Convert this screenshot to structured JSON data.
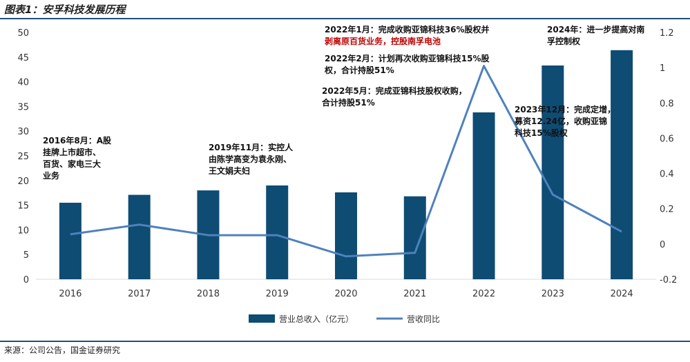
{
  "header": {
    "title": "图表1：安孚科技发展历程"
  },
  "footer": {
    "source": "来源：公司公告，国金证券研究"
  },
  "chart_data": {
    "type": "bar",
    "categories": [
      "2016",
      "2017",
      "2018",
      "2019",
      "2020",
      "2021",
      "2022",
      "2023",
      "2024"
    ],
    "series": [
      {
        "name": "营业总收入（亿元）",
        "type": "bar",
        "axis": "left",
        "color": "#0e4c73",
        "values": [
          15.5,
          17.1,
          18.0,
          19.0,
          17.6,
          16.8,
          33.8,
          43.3,
          46.4
        ]
      },
      {
        "name": "营收同比",
        "type": "line",
        "axis": "right",
        "color": "#4f81bd",
        "values": [
          0.055,
          0.11,
          0.05,
          0.05,
          -0.07,
          -0.05,
          1.01,
          0.28,
          0.07
        ]
      }
    ],
    "y_left": {
      "min": 0,
      "max": 50,
      "ticks": [
        "0",
        "5",
        "10",
        "15",
        "20",
        "25",
        "30",
        "35",
        "40",
        "45",
        "50"
      ]
    },
    "y_right": {
      "min": -0.2,
      "max": 1.2,
      "ticks": [
        "-0.2",
        "0",
        "0.2",
        "0.4",
        "0.6",
        "0.8",
        "1",
        "1.2"
      ]
    },
    "legend": {
      "position": "bottom"
    },
    "annotations": [
      {
        "lines": [
          "2016年8月：A股",
          "挂牌上市超市、",
          "百货、家电三大",
          "业务"
        ],
        "color": "#111111"
      },
      {
        "lines": [
          "2019年11月：实控人",
          "由陈学高变为袁永刚、",
          "王文娟夫妇"
        ],
        "color": "#111111"
      },
      {
        "lines": [
          "2022年1月：完成收购亚锦科技36%股权并"
        ],
        "color": "#111111"
      },
      {
        "lines": [
          "剥离原百货业务，控股南孚电池"
        ],
        "color": "#c00000"
      },
      {
        "lines": [
          "2022年2月：计划再次收购亚锦科技15%股",
          "权，合计持股51%"
        ],
        "color": "#111111"
      },
      {
        "lines": [
          "2022年5月：完成亚锦科技股权收购，",
          "合计持股51%"
        ],
        "color": "#111111"
      },
      {
        "lines": [
          "2023年12月：完成定增，",
          "募资12.24亿，收购亚锦",
          "科技15%股权"
        ],
        "color": "#111111"
      },
      {
        "lines": [
          "2024年：进一步提高对南",
          "孚控制权"
        ],
        "color": "#111111"
      }
    ]
  }
}
